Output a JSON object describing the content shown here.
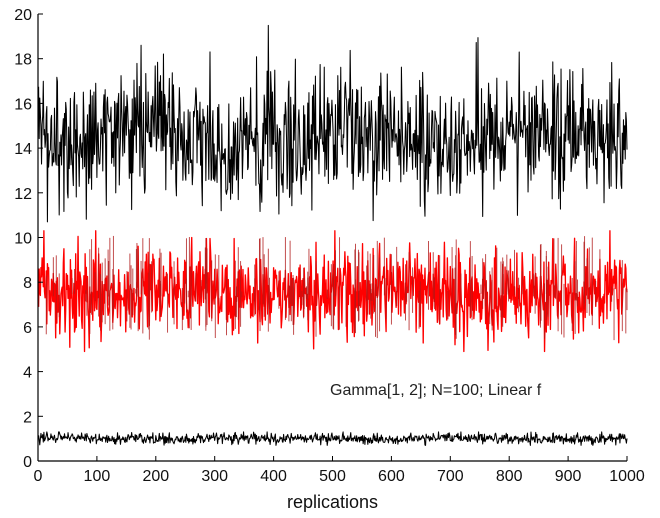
{
  "chart_data": {
    "type": "line",
    "title": "",
    "xlabel": "replications",
    "ylabel": "",
    "xlim": [
      0,
      1000
    ],
    "ylim": [
      0,
      20
    ],
    "grid": false,
    "legend": "none",
    "x_ticks": [
      0,
      100,
      200,
      300,
      400,
      500,
      600,
      700,
      800,
      900,
      1000
    ],
    "y_ticks": [
      0,
      2,
      4,
      6,
      8,
      10,
      12,
      14,
      16,
      18,
      20
    ],
    "annotation": "Gamma[1, 2]; N=100; Linear f",
    "colors": {
      "upper_series": "#000000",
      "middle_series": "#ff0000",
      "middle_spikes": "#b01818",
      "lower_series": "#000000",
      "axes": "#000000"
    },
    "series": [
      {
        "color_key": "upper_series",
        "x_range": [
          1,
          1000
        ],
        "n_points": 1000,
        "center": 14.5,
        "typical_range": [
          12,
          17
        ],
        "observed_min": 10.7,
        "observed_max": 20.0,
        "summary_values": [
          14.6,
          14.3,
          14.8,
          14.2,
          14.5,
          14.4,
          14.7,
          14.3,
          14.6,
          14.5
        ]
      },
      {
        "color_key": "middle_series",
        "x_range": [
          1,
          1000
        ],
        "n_points": 1000,
        "center": 7.5,
        "typical_range": [
          6.2,
          9.2
        ],
        "observed_min": 4.9,
        "observed_max": 10.3,
        "summary_values": [
          7.4,
          7.6,
          7.5,
          7.3,
          7.6,
          7.5,
          7.4,
          7.7,
          7.3,
          7.5
        ]
      },
      {
        "color_key": "lower_series",
        "x_range": [
          1,
          1000
        ],
        "n_points": 1000,
        "center": 1.0,
        "typical_range": [
          0.8,
          1.2
        ],
        "observed_min": 0.7,
        "observed_max": 1.3,
        "summary_values": [
          1.0,
          1.0,
          0.98,
          1.02,
          1.0,
          0.99,
          1.01,
          1.0,
          1.0,
          0.99
        ]
      }
    ]
  }
}
